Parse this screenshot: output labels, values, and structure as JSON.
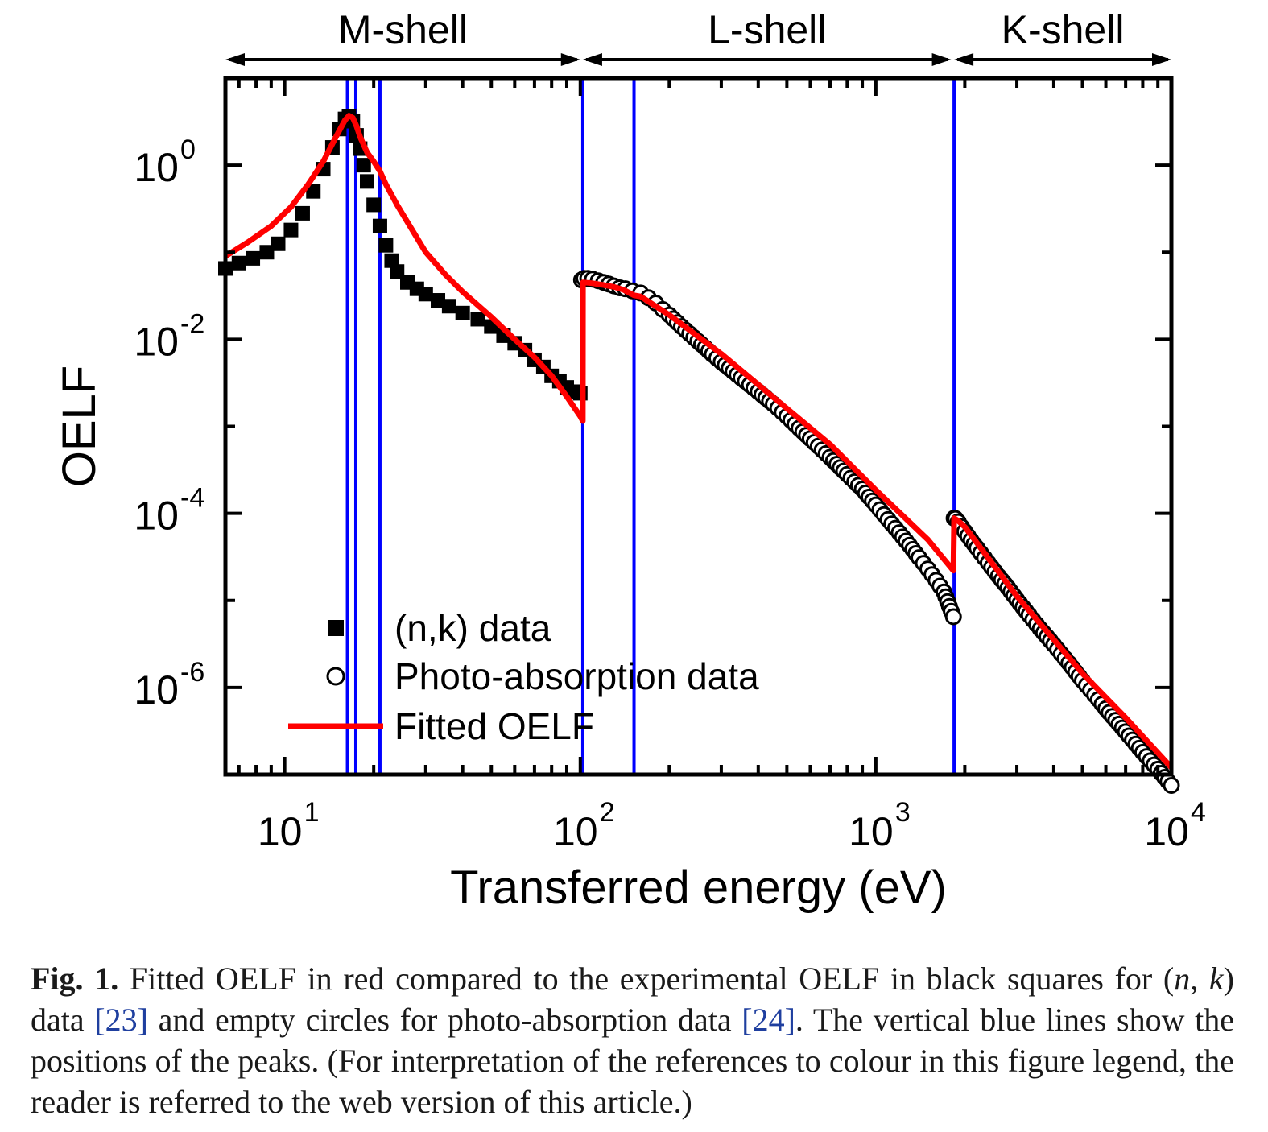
{
  "chart_data": {
    "type": "scatter",
    "xlabel": "Transferred energy (eV)",
    "ylabel": "OELF",
    "xscale": "log",
    "yscale": "log",
    "xlim": [
      6.3,
      10000
    ],
    "ylim": [
      1e-07,
      10
    ],
    "grid": false,
    "legend_position": "bottom-left",
    "x_ticks": [
      {
        "value": 10,
        "base": "10",
        "exp": "1"
      },
      {
        "value": 100,
        "base": "10",
        "exp": "2"
      },
      {
        "value": 1000,
        "base": "10",
        "exp": "3"
      },
      {
        "value": 10000,
        "base": "10",
        "exp": "4"
      }
    ],
    "y_ticks": [
      {
        "value": 1,
        "base": "10",
        "exp": "0"
      },
      {
        "value": 0.01,
        "base": "10",
        "exp": "-2"
      },
      {
        "value": 0.0001,
        "base": "10",
        "exp": "-4"
      },
      {
        "value": 1e-06,
        "base": "10",
        "exp": "-6"
      }
    ],
    "shell_ranges": [
      {
        "label": "M-shell",
        "x_start": 6.3,
        "x_end": 100
      },
      {
        "label": "L-shell",
        "x_start": 102,
        "x_end": 1800
      },
      {
        "label": "K-shell",
        "x_start": 1840,
        "x_end": 10000
      }
    ],
    "peak_lines": [
      16.3,
      17.4,
      21.0,
      102,
      152,
      1840
    ],
    "series": [
      {
        "name": "(n,k) data",
        "marker": "filled-square",
        "color": "#000000",
        "x": [
          6.3,
          7.0,
          7.8,
          8.7,
          9.5,
          10.5,
          11.5,
          12.5,
          13.5,
          14.5,
          15.3,
          16.0,
          16.5,
          17.0,
          17.5,
          18.0,
          18.5,
          19.0,
          20.0,
          21.0,
          22.0,
          23.0,
          24.0,
          26.0,
          28.0,
          30.0,
          33.0,
          36.0,
          40.0,
          45.0,
          50.0,
          55.0,
          60.0,
          65.0,
          70.0,
          75.0,
          80.0,
          85.0,
          90.0,
          95.0,
          100.0
        ],
        "y": [
          0.065,
          0.075,
          0.085,
          0.1,
          0.125,
          0.18,
          0.28,
          0.5,
          0.9,
          1.6,
          2.6,
          3.4,
          3.6,
          3.2,
          2.2,
          1.55,
          1.0,
          0.65,
          0.35,
          0.2,
          0.12,
          0.08,
          0.06,
          0.045,
          0.038,
          0.033,
          0.028,
          0.024,
          0.02,
          0.017,
          0.014,
          0.011,
          0.009,
          0.0075,
          0.0058,
          0.0048,
          0.0038,
          0.0033,
          0.0028,
          0.0025,
          0.0024
        ]
      },
      {
        "name": "Photo-absorption data",
        "marker": "open-circle",
        "color": "#000000",
        "x": [
          101,
          103,
          106,
          110,
          115,
          120,
          125,
          130,
          136,
          142,
          150,
          160,
          170,
          180,
          190,
          200,
          220,
          250,
          280,
          300,
          350,
          400,
          450,
          500,
          550,
          600,
          700,
          800,
          900,
          1000,
          1100,
          1200,
          1300,
          1400,
          1500,
          1600,
          1700,
          1800,
          1830,
          1840,
          1860,
          1900,
          1950,
          2000,
          2100,
          2200,
          2400,
          2600,
          2800,
          3000,
          3300,
          3600,
          4000,
          4500,
          5000,
          5500,
          6000,
          7000,
          8000,
          9000,
          10000
        ],
        "y": [
          0.048,
          0.05,
          0.05,
          0.049,
          0.047,
          0.045,
          0.043,
          0.041,
          0.039,
          0.038,
          0.036,
          0.034,
          0.03,
          0.026,
          0.022,
          0.019,
          0.014,
          0.0095,
          0.0067,
          0.0055,
          0.0036,
          0.0025,
          0.0018,
          0.0013,
          0.00095,
          0.00072,
          0.00044,
          0.00028,
          0.00019,
          0.000125,
          8.5e-05,
          6e-05,
          4.3e-05,
          3.1e-05,
          2.3e-05,
          1.7e-05,
          1.25e-05,
          7.5e-06,
          6.5e-06,
          8.8e-05,
          8.7e-05,
          8e-05,
          7e-05,
          6.2e-05,
          4.9e-05,
          4e-05,
          2.7e-05,
          1.9e-05,
          1.4e-05,
          1.02e-05,
          6.8e-06,
          4.7e-06,
          3.1e-06,
          1.9e-06,
          1.2e-06,
          8.2e-07,
          5.7e-07,
          3.1e-07,
          1.8e-07,
          1.15e-07,
          7.5e-08
        ]
      },
      {
        "name": "Fitted OELF",
        "marker": "line",
        "color": "#ff0000",
        "x": [
          6.3,
          7.5,
          9.0,
          10.5,
          12.0,
          13.5,
          15.0,
          16.0,
          16.5,
          17.0,
          17.5,
          18.0,
          19.0,
          20.0,
          21.0,
          22.0,
          24.0,
          27.0,
          30.0,
          35.0,
          40.0,
          50.0,
          60.0,
          70.0,
          80.0,
          90.0,
          100.0,
          102.0,
          102.1,
          110,
          120,
          130,
          140,
          152,
          160,
          200,
          300,
          500,
          700,
          1000,
          1500,
          1830,
          1840,
          1900,
          2000,
          3000,
          5000,
          7000,
          10000
        ],
        "y": [
          0.09,
          0.13,
          0.2,
          0.33,
          0.6,
          1.1,
          2.2,
          3.3,
          3.7,
          3.5,
          2.8,
          2.1,
          1.4,
          1.1,
          0.85,
          0.6,
          0.35,
          0.18,
          0.1,
          0.055,
          0.035,
          0.018,
          0.01,
          0.0062,
          0.0038,
          0.0022,
          0.0013,
          0.00115,
          0.045,
          0.044,
          0.042,
          0.04,
          0.037,
          0.032,
          0.031,
          0.019,
          0.0068,
          0.0016,
          0.00062,
          0.000185,
          5e-05,
          2.2e-05,
          8.8e-05,
          8.2e-05,
          7e-05,
          1.12e-05,
          1.45e-06,
          4.5e-07,
          1.2e-07
        ]
      }
    ]
  },
  "caption": {
    "label": "Fig. 1.",
    "t1": " Fitted OELF in red compared to the experimental OELF in black squares for (",
    "n": "n",
    "t2": ", ",
    "k": "k",
    "t3": ") data ",
    "ref1": "[23]",
    "t4": " and empty circles for photo-absorption data ",
    "ref2": "[24]",
    "t5": ". The vertical blue lines show the positions of the peaks. (For interpretation of the references to colour in this figure legend, the reader is referred to the web version of this article.)"
  },
  "colors": {
    "fit": "#ff0000",
    "peak_lines": "#0000ff",
    "data": "#000000",
    "reference_link": "#1f3f9f"
  }
}
